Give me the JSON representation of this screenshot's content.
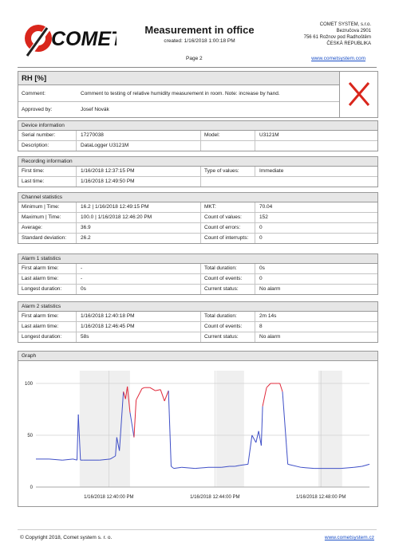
{
  "header": {
    "logo_text": "COMET",
    "title": "Measurement in office",
    "created": "created:  1/16/2018 1:00:18 PM",
    "page": "Page   2",
    "company_lines": [
      "COMET SYSTEM, s.r.o.",
      "Bezručova 2901",
      "756 61  Rožnov pod Radhoštěm",
      "ČESKÁ REPUBLIKA"
    ],
    "website": "www.cometsystem.com"
  },
  "channel": {
    "title": "RH [%]",
    "comment_label": "Comment:",
    "comment": "Comment to testing of relative humidity measurement in room. Note: increase by hand.",
    "approved_label": "Approved by:",
    "approved": "Josef Novák",
    "alarm_icon": "red-x-icon",
    "alarm_color": "#d9261c"
  },
  "device": {
    "title": "Device information",
    "serial_label": "Serial number:",
    "serial": "17270038",
    "model_label": "Model:",
    "model": "U3121M",
    "desc_label": "Description:",
    "desc": "DataLogger U3121M"
  },
  "recording": {
    "title": "Recording information",
    "first_label": "First time:",
    "first": "1/16/2018 12:37:15 PM",
    "type_label": "Type of values:",
    "type": "Immediate",
    "last_label": "Last time:",
    "last": "1/16/2018 12:49:50 PM"
  },
  "stats": {
    "title": "Channel statistics",
    "min_label": "Minimum | Time:",
    "min": "16.2 | 1/16/2018 12:49:15 PM",
    "mkt_label": "MKT:",
    "mkt": "70.04",
    "max_label": "Maximum | Time:",
    "max": "100.0 | 1/16/2018 12:46:20 PM",
    "count_label": "Count of values:",
    "count": "152",
    "avg_label": "Average:",
    "avg": "36.9",
    "errors_label": "Count of errors:",
    "errors": "0",
    "std_label": "Standard deviation:",
    "std": "26.2",
    "interrupts_label": "Count of interrupts:",
    "interrupts": "0"
  },
  "alarm1": {
    "title": "Alarm 1 statistics",
    "first_label": "First alarm time:",
    "first": "-",
    "total_label": "Total duration:",
    "total": "0s",
    "last_label": "Last alarm time:",
    "last": "-",
    "events_label": "Count of events:",
    "events": "0",
    "longest_label": "Longest duration:",
    "longest": "0s",
    "status_label": "Current status:",
    "status": "No alarm"
  },
  "alarm2": {
    "title": "Alarm 2 statistics",
    "first_label": "First alarm time:",
    "first": "1/16/2018 12:40:18 PM",
    "total_label": "Total duration:",
    "total": "2m 14s",
    "last_label": "Last alarm time:",
    "last": "1/16/2018 12:46:45 PM",
    "events_label": "Count of events:",
    "events": "8",
    "longest_label": "Longest duration:",
    "longest": "58s",
    "status_label": "Current status:",
    "status": "No alarm"
  },
  "graph": {
    "title": "Graph",
    "y_ticks": [
      "100",
      "50",
      "0"
    ],
    "x_ticks": [
      "1/16/2018 12:40:00 PM",
      "1/16/2018 12:44:00 PM",
      "1/16/2018 12:48:00 PM"
    ],
    "normal_color": "#3f4fc7",
    "alarm_color": "#e0283a",
    "band_color": "#efefef"
  },
  "chart_data": {
    "type": "line",
    "x_unit": "minutes after 12:37:15 PM",
    "ylim": [
      0,
      100
    ],
    "x_tick_values": [
      2.75,
      6.75,
      10.75
    ],
    "x_ticks": [
      "1/16/2018 12:40:00 PM",
      "1/16/2018 12:44:00 PM",
      "1/16/2018 12:48:00 PM"
    ],
    "y_ticks": [
      0,
      50,
      100
    ],
    "shaded_intervals": [
      [
        1.65,
        3.55
      ],
      [
        6.8,
        7.85
      ],
      [
        10.65,
        11.55
      ]
    ],
    "alarm_threshold": 70,
    "x": [
      0,
      0.5,
      1.0,
      1.4,
      1.55,
      1.6,
      1.68,
      1.8,
      2.0,
      2.4,
      2.8,
      3.0,
      3.05,
      3.15,
      3.3,
      3.38,
      3.45,
      3.55,
      3.7,
      3.78,
      3.9,
      4.0,
      4.1,
      4.3,
      4.5,
      4.7,
      4.85,
      5.0,
      5.1,
      5.2,
      5.5,
      6.0,
      6.5,
      7.0,
      7.3,
      7.5,
      7.7,
      8.0,
      8.15,
      8.3,
      8.4,
      8.5,
      8.55,
      8.7,
      8.85,
      9.0,
      9.1,
      9.2,
      9.3,
      9.5,
      10.0,
      10.5,
      11.0,
      11.5,
      12.0,
      12.3,
      12.58
    ],
    "y": [
      27,
      27,
      26,
      27,
      26,
      70,
      26,
      26,
      26,
      26,
      27,
      30,
      48,
      35,
      92,
      85,
      97,
      72,
      48,
      84,
      90,
      95,
      96,
      96,
      93,
      94,
      83,
      93,
      20,
      18,
      19,
      18,
      19,
      19,
      20,
      20,
      21,
      22,
      50,
      43,
      54,
      40,
      78,
      96,
      100,
      100,
      100,
      100,
      92,
      22,
      19,
      18,
      18,
      18,
      19,
      20,
      22
    ]
  },
  "footer": {
    "copyright": "© Copyright 2018, Comet system s. r. o.",
    "website": "www.cometsystem.cz"
  }
}
